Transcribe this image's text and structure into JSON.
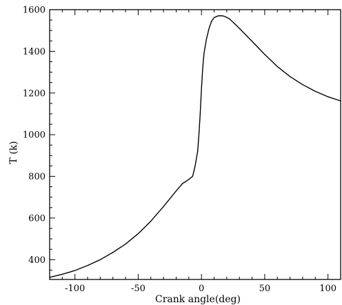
{
  "chart_data": {
    "type": "line",
    "xlabel": "Crank angle(deg)",
    "ylabel": "T (k)",
    "xlim": [
      -120,
      110
    ],
    "ylim": [
      305,
      1600
    ],
    "x_ticks": [
      -100,
      -50,
      0,
      50,
      100
    ],
    "y_ticks": [
      400,
      600,
      800,
      1000,
      1200,
      1400,
      1600
    ],
    "x_tick_labels": [
      "-100",
      "-50",
      "0",
      "50",
      "100"
    ],
    "y_tick_labels": [
      "400",
      "600",
      "800",
      "1000",
      "1200",
      "1400",
      "1600"
    ],
    "grid": false,
    "series": [
      {
        "x": [
          -120,
          -110,
          -100,
          -90,
          -80,
          -70,
          -60,
          -50,
          -40,
          -30,
          -20,
          -15,
          -10,
          -7,
          -5,
          -3,
          -2,
          -1,
          0,
          1,
          2,
          4,
          6,
          8,
          10,
          13,
          15,
          17,
          19,
          22,
          25,
          30,
          40,
          50,
          60,
          70,
          80,
          90,
          100,
          110
        ],
        "y": [
          315,
          330,
          348,
          372,
          400,
          435,
          475,
          525,
          585,
          655,
          730,
          765,
          785,
          800,
          850,
          920,
          1000,
          1100,
          1220,
          1320,
          1390,
          1460,
          1510,
          1545,
          1562,
          1570,
          1571,
          1570,
          1566,
          1556,
          1540,
          1510,
          1448,
          1385,
          1327,
          1279,
          1240,
          1208,
          1182,
          1162
        ]
      }
    ]
  }
}
